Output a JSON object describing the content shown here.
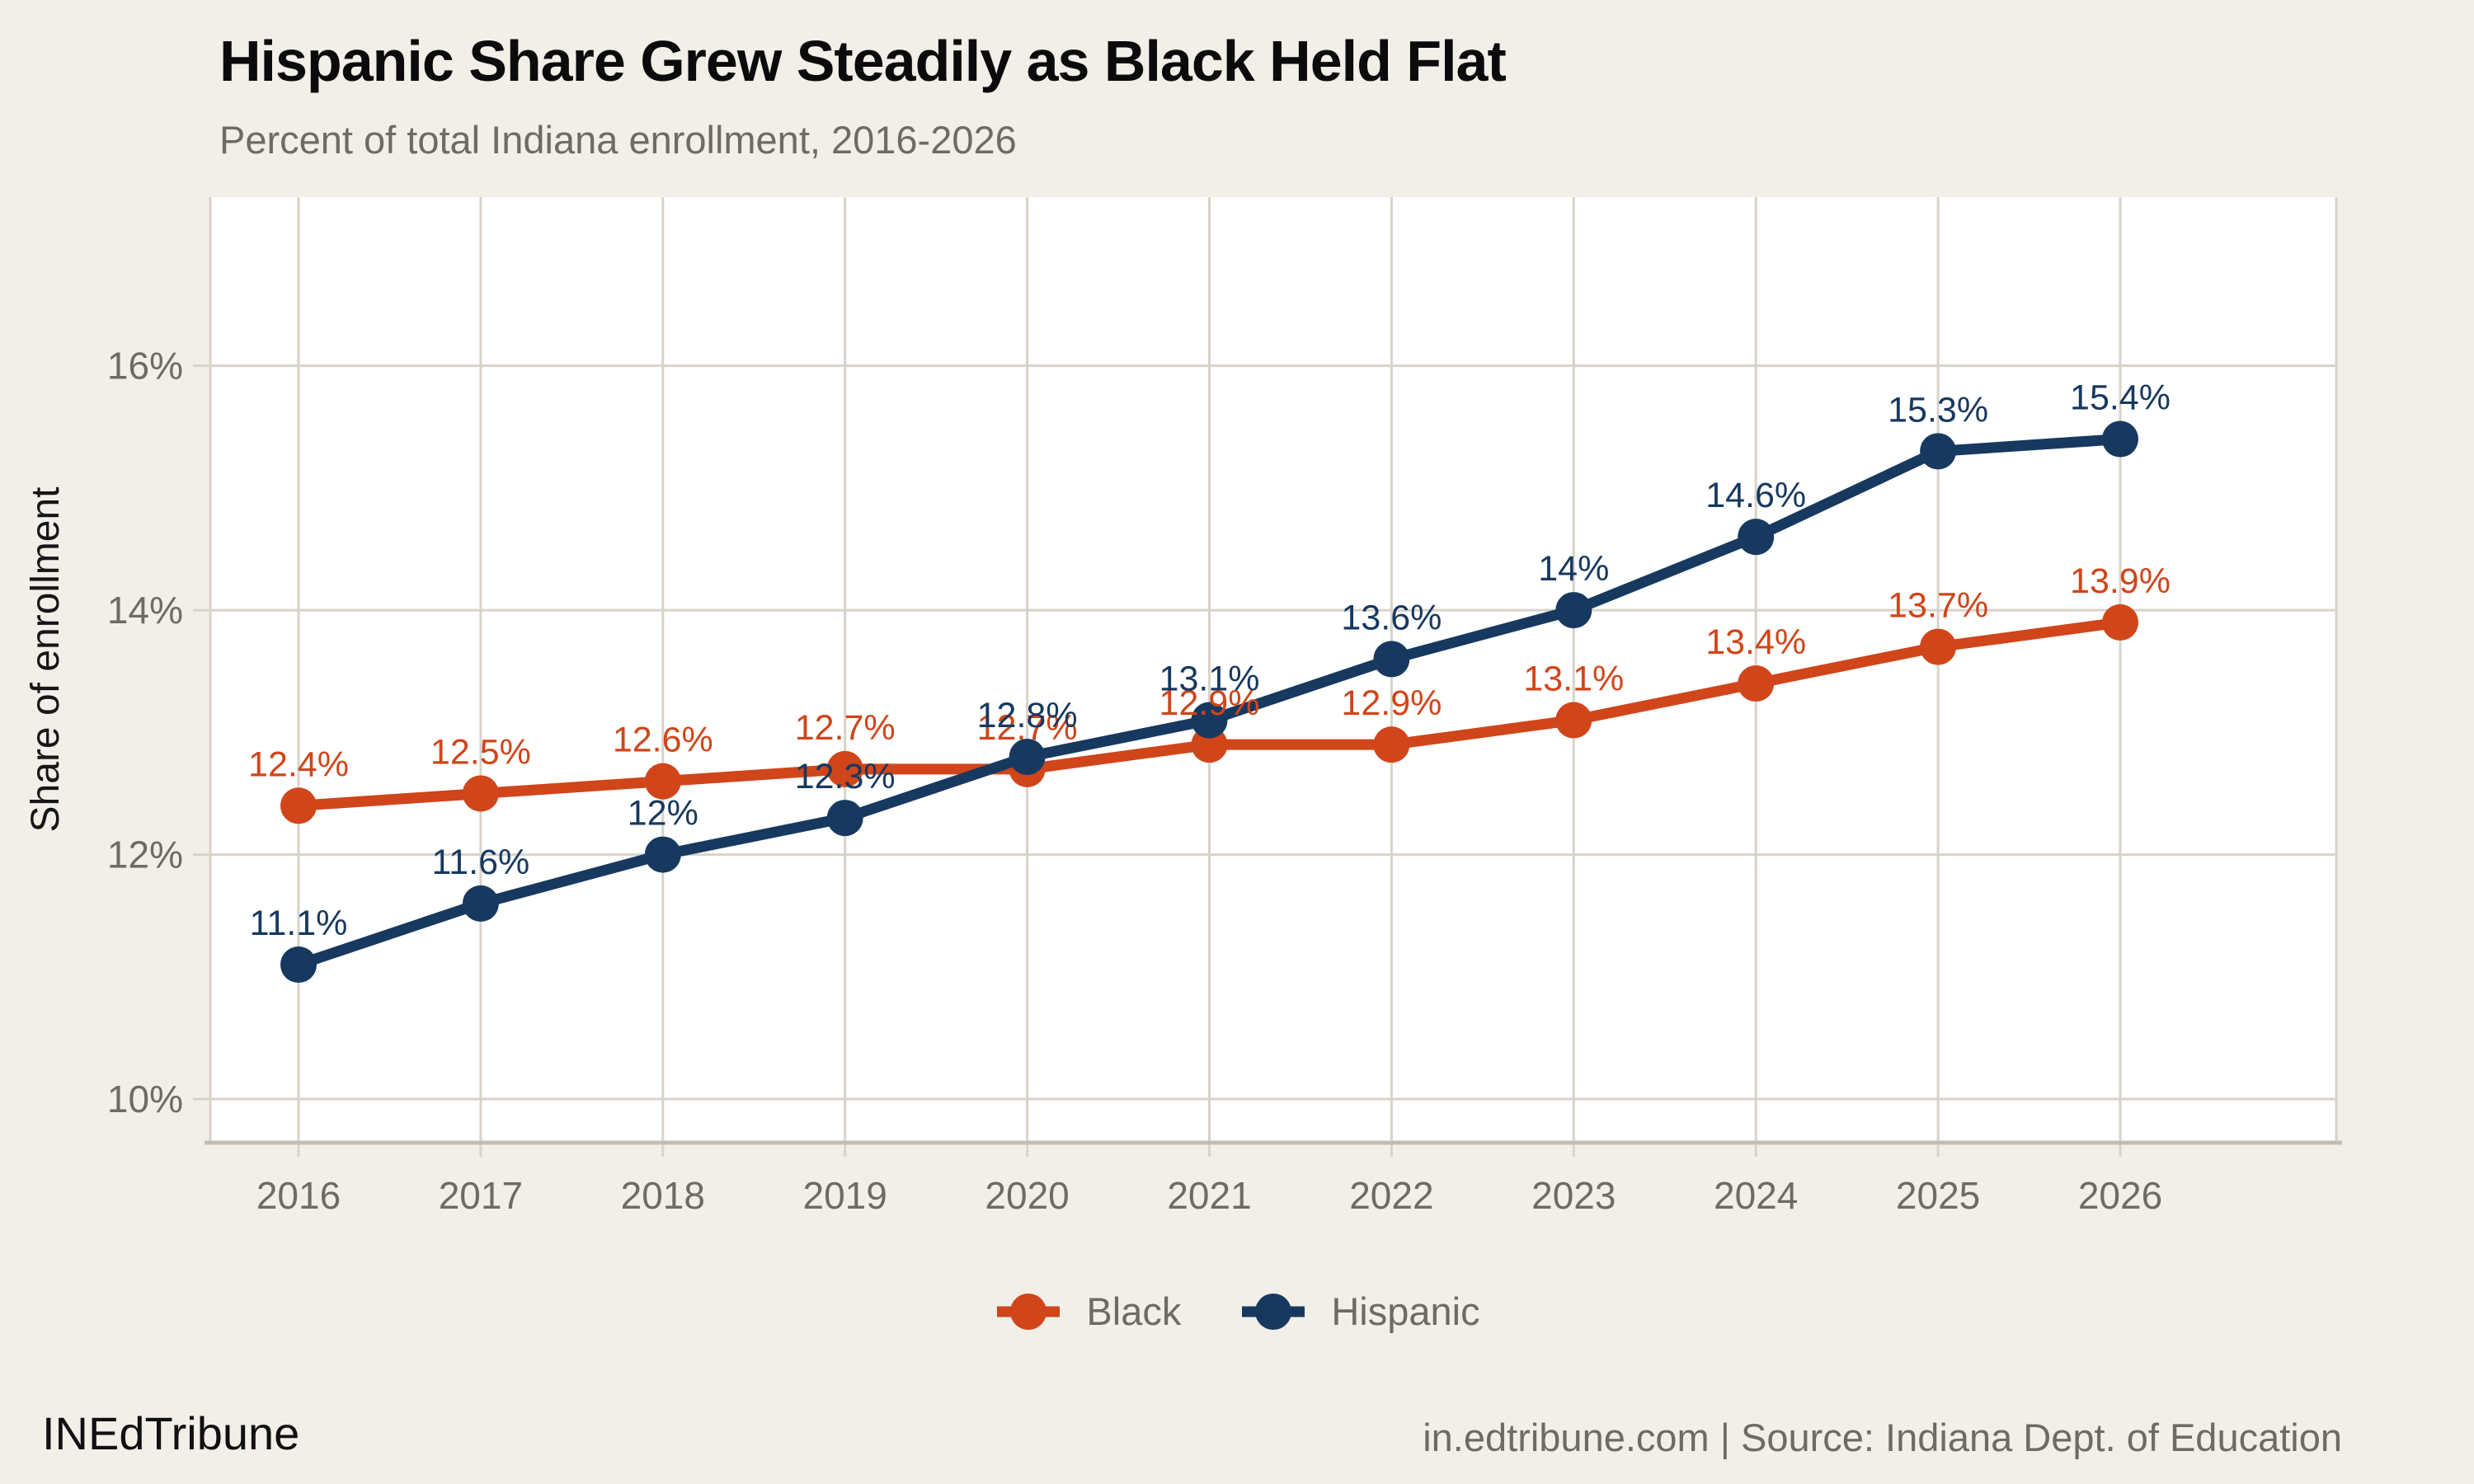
{
  "chart_data": {
    "type": "line",
    "title": "Hispanic Share Grew Steadily as Black Held Flat",
    "subtitle": "Percent of total Indiana enrollment, 2016-2026",
    "x": [
      2016,
      2017,
      2018,
      2019,
      2020,
      2021,
      2022,
      2023,
      2024,
      2025,
      2026
    ],
    "series": [
      {
        "name": "Black",
        "color": "#d0451a",
        "values": [
          12.4,
          12.5,
          12.6,
          12.7,
          12.7,
          12.9,
          12.9,
          13.1,
          13.4,
          13.7,
          13.9
        ]
      },
      {
        "name": "Hispanic",
        "color": "#17395f",
        "values": [
          11.1,
          11.6,
          12,
          12.3,
          12.8,
          13.1,
          13.6,
          14,
          14.6,
          15.3,
          15.4
        ]
      }
    ],
    "xlabel": "",
    "ylabel": "Share of enrollment",
    "yticks": [
      {
        "value": 10,
        "label": "10%"
      },
      {
        "value": 12,
        "label": "12%"
      },
      {
        "value": 14,
        "label": "14%"
      },
      {
        "value": 16,
        "label": "16%"
      }
    ],
    "ylim": [
      9.65,
      17.38
    ],
    "grid": true,
    "legend_position": "bottom",
    "point_label_format": "{value}%"
  },
  "footer": {
    "brand": "INEdTribune",
    "source": "in.edtribune.com | Source: Indiana Dept. of Education"
  },
  "colors": {
    "background": "#f2efe9",
    "plot_background": "#ffffff",
    "gridline": "#d8d3ca",
    "axis_line": "#c3bdb1",
    "tick_text": "#6f6b64",
    "title_text": "#0b0b0b",
    "subtitle_text": "#6f6b64",
    "black_series": "#d0451a",
    "hispanic_series": "#17395f"
  }
}
